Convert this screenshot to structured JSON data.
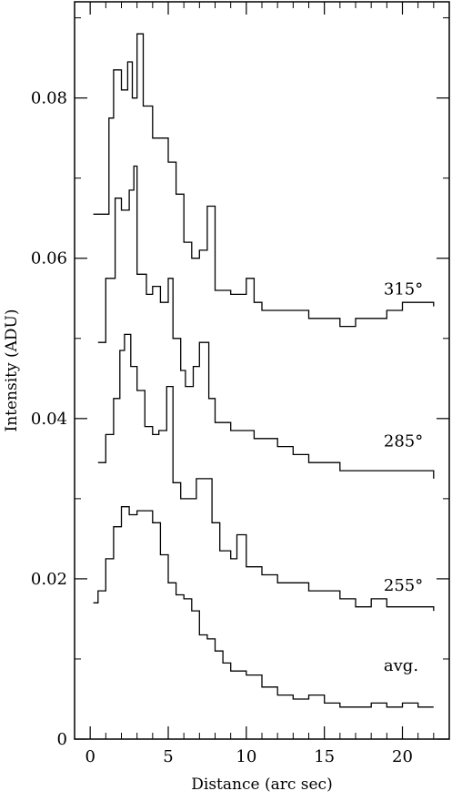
{
  "chart_data": {
    "type": "line",
    "xlabel": "Distance (arc sec)",
    "ylabel": "Intensity (ADU)",
    "xlim": [
      -1,
      23
    ],
    "ylim": [
      0,
      0.092
    ],
    "x_ticks": [
      {
        "v": 0,
        "label": "0"
      },
      {
        "v": 5,
        "label": "5"
      },
      {
        "v": 10,
        "label": "10"
      },
      {
        "v": 15,
        "label": "15"
      },
      {
        "v": 20,
        "label": "20"
      }
    ],
    "y_ticks": [
      {
        "v": 0,
        "label": "0"
      },
      {
        "v": 0.02,
        "label": "0.02"
      },
      {
        "v": 0.04,
        "label": "0.04"
      },
      {
        "v": 0.06,
        "label": "0.06"
      },
      {
        "v": 0.08,
        "label": "0.08"
      }
    ],
    "grid": false,
    "step": "histogram",
    "series": [
      {
        "name": "315°",
        "label_pos": [
          18.8,
          0.0555
        ],
        "x": [
          0.2,
          1.2,
          1.5,
          2.0,
          2.4,
          2.7,
          3.0,
          3.4,
          4.0,
          5.0,
          5.5,
          6.0,
          6.5,
          7.0,
          7.5,
          8.0,
          9.0,
          10.0,
          10.5,
          11.0,
          12.0,
          13.0,
          14.0,
          15.0,
          16.0,
          17.0,
          18.0,
          19.0,
          20.0,
          21.0,
          22.0
        ],
        "y": [
          0.0655,
          0.0775,
          0.0835,
          0.081,
          0.0845,
          0.08,
          0.088,
          0.079,
          0.075,
          0.072,
          0.068,
          0.062,
          0.06,
          0.061,
          0.0665,
          0.056,
          0.0555,
          0.0575,
          0.0545,
          0.0535,
          0.0535,
          0.0535,
          0.0525,
          0.0525,
          0.0515,
          0.0525,
          0.0525,
          0.0535,
          0.0545,
          0.0545,
          0.054
        ]
      },
      {
        "name": "285°",
        "label_pos": [
          18.8,
          0.0365
        ],
        "x": [
          0.5,
          1.0,
          1.6,
          2.0,
          2.5,
          2.8,
          3.0,
          3.6,
          4.0,
          4.5,
          5.0,
          5.3,
          5.8,
          6.1,
          6.6,
          7.0,
          7.6,
          8.0,
          9.0,
          10.0,
          10.5,
          11.0,
          12.0,
          13.0,
          14.0,
          15.0,
          16.0,
          17.0,
          18.0,
          19.0,
          20.0,
          21.0,
          22.0
        ],
        "y": [
          0.0495,
          0.0575,
          0.0675,
          0.066,
          0.0685,
          0.0715,
          0.058,
          0.0555,
          0.0565,
          0.0545,
          0.0575,
          0.05,
          0.046,
          0.044,
          0.0465,
          0.0495,
          0.0425,
          0.0395,
          0.0385,
          0.0385,
          0.0375,
          0.0375,
          0.0365,
          0.0355,
          0.0345,
          0.0345,
          0.0335,
          0.0335,
          0.0335,
          0.0335,
          0.0335,
          0.0335,
          0.0325
        ]
      },
      {
        "name": "255°",
        "label_pos": [
          18.8,
          0.0185
        ],
        "x": [
          0.5,
          1.0,
          1.5,
          1.9,
          2.2,
          2.6,
          3.0,
          3.5,
          4.0,
          4.4,
          4.9,
          5.3,
          5.8,
          6.3,
          6.8,
          7.3,
          7.8,
          8.3,
          9.0,
          9.4,
          10.0,
          11.0,
          12.0,
          13.0,
          14.0,
          15.0,
          16.0,
          17.0,
          18.0,
          19.0,
          20.0,
          21.0,
          22.0
        ],
        "y": [
          0.0345,
          0.038,
          0.0425,
          0.0485,
          0.0505,
          0.0465,
          0.0435,
          0.039,
          0.038,
          0.0385,
          0.044,
          0.032,
          0.03,
          0.03,
          0.0325,
          0.0325,
          0.027,
          0.0235,
          0.0225,
          0.0255,
          0.0215,
          0.0205,
          0.0195,
          0.0195,
          0.0185,
          0.0185,
          0.0175,
          0.0165,
          0.0175,
          0.0165,
          0.0165,
          0.0165,
          0.016
        ]
      },
      {
        "name": "avg.",
        "label_pos": [
          18.8,
          0.0085
        ],
        "x": [
          0.2,
          0.5,
          1.0,
          1.5,
          2.0,
          2.5,
          3.0,
          3.5,
          4.0,
          4.5,
          5.0,
          5.5,
          6.0,
          6.5,
          7.0,
          7.5,
          8.0,
          8.5,
          9.0,
          10.0,
          11.0,
          12.0,
          13.0,
          14.0,
          15.0,
          16.0,
          17.0,
          18.0,
          19.0,
          20.0,
          21.0,
          22.0
        ],
        "y": [
          0.017,
          0.0185,
          0.0225,
          0.0265,
          0.029,
          0.028,
          0.0285,
          0.0285,
          0.027,
          0.023,
          0.0195,
          0.018,
          0.0175,
          0.016,
          0.013,
          0.0125,
          0.011,
          0.0095,
          0.0085,
          0.008,
          0.0065,
          0.0055,
          0.005,
          0.0055,
          0.0045,
          0.004,
          0.004,
          0.0045,
          0.004,
          0.0045,
          0.004,
          0.004
        ]
      }
    ]
  }
}
